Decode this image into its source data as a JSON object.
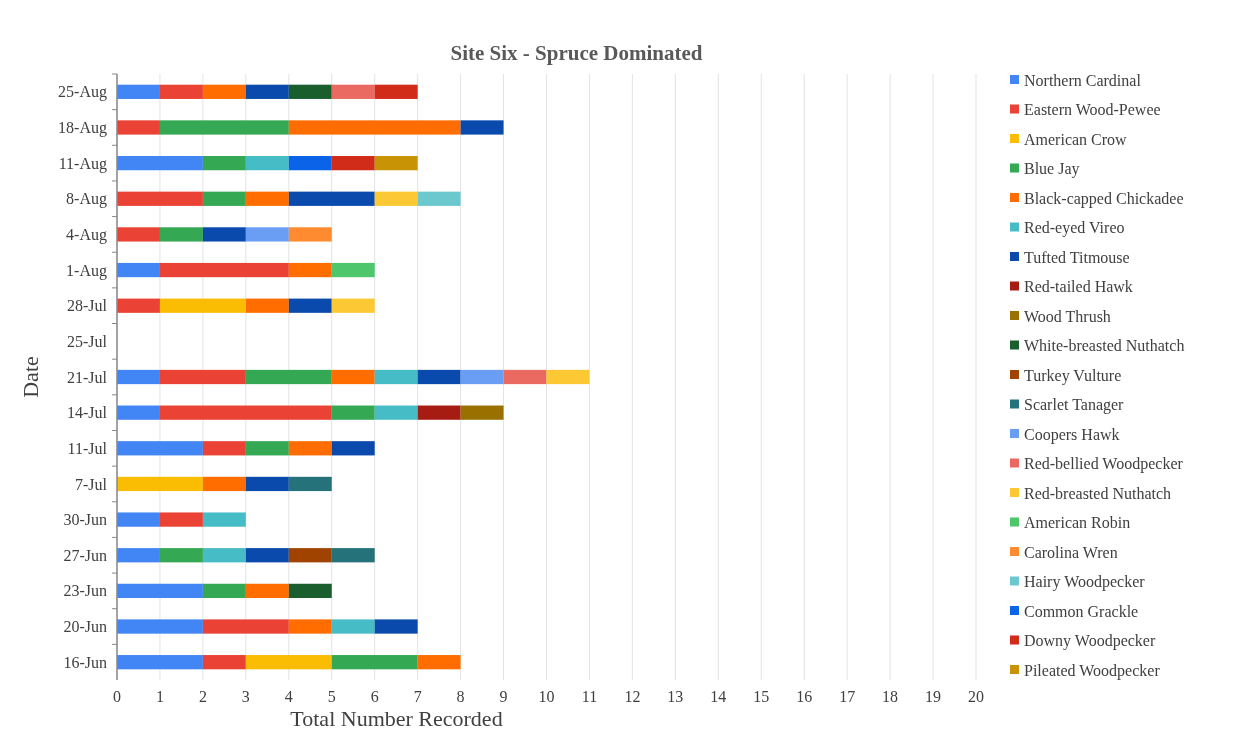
{
  "chart_data": {
    "type": "bar",
    "orientation": "horizontal",
    "stacked": true,
    "title": "Site Six - Spruce Dominated",
    "xlabel": "Total Number Recorded",
    "ylabel": "Date",
    "categories": [
      "25-Aug",
      "18-Aug",
      "11-Aug",
      "8-Aug",
      "4-Aug",
      "1-Aug",
      "28-Jul",
      "25-Jul",
      "21-Jul",
      "14-Jul",
      "11-Jul",
      "7-Jul",
      "30-Jun",
      "27-Jun",
      "23-Jun",
      "20-Jun",
      "16-Jun"
    ],
    "xlim": [
      0,
      20
    ],
    "xticks": [
      0,
      1,
      2,
      3,
      4,
      5,
      6,
      7,
      8,
      9,
      10,
      11,
      12,
      13,
      14,
      15,
      16,
      17,
      18,
      19,
      20
    ],
    "grid": "x",
    "legend": "right",
    "series": [
      {
        "name": "Northern Cardinal",
        "color": "#4285f4",
        "values": [
          1,
          null,
          2,
          null,
          null,
          1,
          null,
          null,
          1,
          1,
          2,
          null,
          1,
          1,
          2,
          2,
          2
        ]
      },
      {
        "name": "Eastern Wood-Pewee",
        "color": "#ea4335",
        "values": [
          1,
          1,
          null,
          2,
          1,
          3,
          1,
          null,
          2,
          4,
          1,
          null,
          1,
          null,
          null,
          2,
          1
        ]
      },
      {
        "name": "American Crow",
        "color": "#fbbc04",
        "values": [
          null,
          null,
          null,
          null,
          null,
          null,
          2,
          null,
          null,
          null,
          null,
          2,
          null,
          null,
          null,
          null,
          2
        ]
      },
      {
        "name": "Blue Jay",
        "color": "#34a853",
        "values": [
          null,
          3,
          1,
          1,
          1,
          null,
          null,
          null,
          2,
          1,
          1,
          null,
          null,
          1,
          1,
          null,
          2
        ]
      },
      {
        "name": "Black-capped Chickadee",
        "color": "#ff6d01",
        "values": [
          1,
          4,
          null,
          1,
          null,
          1,
          1,
          null,
          1,
          null,
          1,
          1,
          null,
          null,
          1,
          1,
          1
        ]
      },
      {
        "name": "Red-eyed Vireo",
        "color": "#46bdc6",
        "values": [
          null,
          null,
          1,
          null,
          null,
          null,
          null,
          null,
          1,
          1,
          null,
          null,
          1,
          1,
          null,
          1,
          null
        ]
      },
      {
        "name": "Tufted Titmouse",
        "color": "#0b4aad",
        "values": [
          1,
          1,
          null,
          2,
          1,
          null,
          1,
          null,
          1,
          null,
          1,
          1,
          null,
          1,
          null,
          1,
          null
        ]
      },
      {
        "name": "Red-tailed Hawk",
        "color": "#a61c12",
        "values": [
          null,
          null,
          null,
          null,
          null,
          null,
          null,
          null,
          null,
          1,
          null,
          null,
          null,
          null,
          null,
          null,
          null
        ]
      },
      {
        "name": "Wood Thrush",
        "color": "#9a7000",
        "values": [
          null,
          null,
          null,
          null,
          null,
          null,
          null,
          null,
          null,
          1,
          null,
          null,
          null,
          null,
          null,
          null,
          null
        ]
      },
      {
        "name": "White-breasted Nuthatch",
        "color": "#1b5e2d",
        "values": [
          1,
          null,
          null,
          null,
          null,
          null,
          null,
          null,
          null,
          null,
          null,
          null,
          null,
          null,
          1,
          null,
          null
        ]
      },
      {
        "name": "Turkey Vulture",
        "color": "#a14300",
        "values": [
          null,
          null,
          null,
          null,
          null,
          null,
          null,
          null,
          null,
          null,
          null,
          null,
          null,
          1,
          null,
          null,
          null
        ]
      },
      {
        "name": "Scarlet Tanager",
        "color": "#26727a",
        "values": [
          null,
          null,
          null,
          null,
          null,
          null,
          null,
          null,
          null,
          null,
          null,
          1,
          null,
          1,
          null,
          null,
          null
        ]
      },
      {
        "name": "Coopers Hawk",
        "color": "#6a9ef5",
        "values": [
          null,
          null,
          null,
          null,
          1,
          null,
          null,
          null,
          1,
          null,
          null,
          null,
          null,
          null,
          null,
          null,
          null
        ]
      },
      {
        "name": "Red-bellied Woodpecker",
        "color": "#ea6a61",
        "values": [
          1,
          null,
          null,
          null,
          null,
          null,
          null,
          null,
          1,
          null,
          null,
          null,
          null,
          null,
          null,
          null,
          null
        ]
      },
      {
        "name": "Red-breasted Nuthatch",
        "color": "#fcc934",
        "values": [
          null,
          null,
          null,
          1,
          null,
          null,
          1,
          null,
          1,
          null,
          null,
          null,
          null,
          null,
          null,
          null,
          null
        ]
      },
      {
        "name": "American Robin",
        "color": "#4ec66b",
        "values": [
          null,
          null,
          null,
          null,
          null,
          1,
          null,
          null,
          null,
          null,
          null,
          null,
          null,
          null,
          null,
          null,
          null
        ]
      },
      {
        "name": "Carolina Wren",
        "color": "#ff8b31",
        "values": [
          null,
          null,
          null,
          null,
          1,
          null,
          null,
          null,
          null,
          null,
          null,
          null,
          null,
          null,
          null,
          null,
          null
        ]
      },
      {
        "name": "Hairy Woodpecker",
        "color": "#6cc8cf",
        "values": [
          null,
          null,
          null,
          1,
          null,
          null,
          null,
          null,
          null,
          null,
          null,
          null,
          null,
          null,
          null,
          null,
          null
        ]
      },
      {
        "name": "Common Grackle",
        "color": "#0b63e8",
        "values": [
          null,
          null,
          1,
          null,
          null,
          null,
          null,
          null,
          null,
          null,
          null,
          null,
          null,
          null,
          null,
          null,
          null
        ]
      },
      {
        "name": "Downy Woodpecker",
        "color": "#d12b1a",
        "values": [
          1,
          null,
          1,
          null,
          null,
          null,
          null,
          null,
          null,
          null,
          null,
          null,
          null,
          null,
          null,
          null,
          null
        ]
      },
      {
        "name": "Pileated Woodpecker",
        "color": "#c89304",
        "values": [
          null,
          null,
          1,
          null,
          null,
          null,
          null,
          null,
          null,
          null,
          null,
          null,
          null,
          null,
          null,
          null,
          null
        ]
      }
    ]
  }
}
